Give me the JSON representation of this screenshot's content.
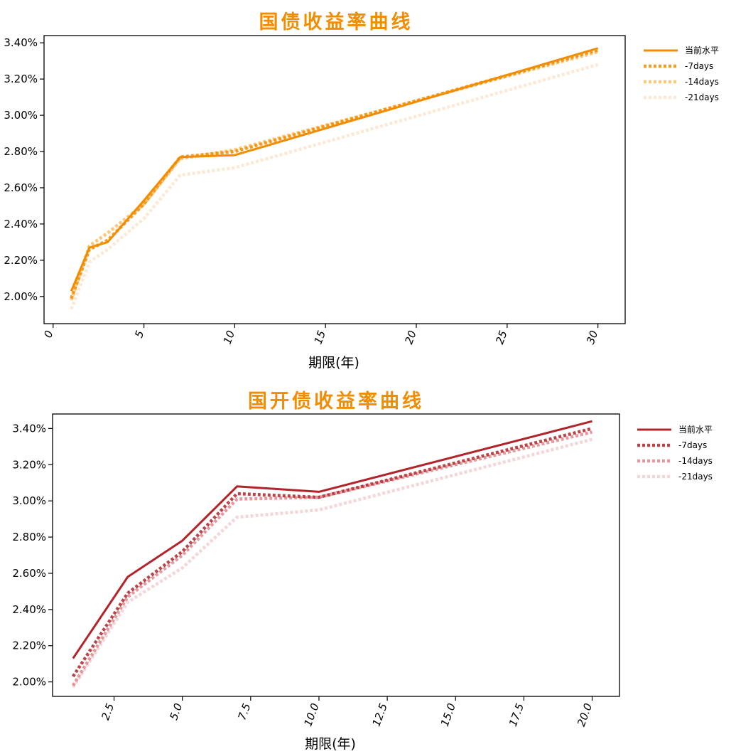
{
  "chart_data": [
    {
      "type": "line",
      "title": "国债收益率曲线",
      "title_color": "#f28c00",
      "xlabel": "期限(年)",
      "ylabel": "",
      "xlim": [
        -0.5,
        31.5
      ],
      "ylim": [
        1.85,
        3.44
      ],
      "xticks": [
        0,
        5,
        10,
        15,
        20,
        25,
        30
      ],
      "xtick_labels": [
        "0",
        "5",
        "10",
        "15",
        "20",
        "25",
        "30"
      ],
      "yticks": [
        2.0,
        2.2,
        2.4,
        2.6,
        2.8,
        3.0,
        3.2,
        3.4
      ],
      "ytick_labels": [
        "2.00%",
        "2.20%",
        "2.40%",
        "2.60%",
        "2.80%",
        "3.00%",
        "3.20%",
        "3.40%"
      ],
      "grid": false,
      "legend_position": "outside-right",
      "x": [
        1,
        2,
        3,
        5,
        7,
        10,
        30
      ],
      "series": [
        {
          "name": "当前水平",
          "color": "#f28c00",
          "opacity": 1.0,
          "style": "solid",
          "values": [
            2.03,
            2.27,
            2.3,
            2.53,
            2.77,
            2.78,
            3.37
          ]
        },
        {
          "name": "-7days",
          "color": "#f28c00",
          "opacity": 0.85,
          "style": "dotted",
          "values": [
            1.99,
            2.26,
            2.31,
            2.51,
            2.77,
            2.8,
            3.36
          ]
        },
        {
          "name": "-14days",
          "color": "#f6b042",
          "opacity": 0.7,
          "style": "dotted",
          "values": [
            1.98,
            2.28,
            2.35,
            2.51,
            2.76,
            2.81,
            3.35
          ]
        },
        {
          "name": "-21days",
          "color": "#fbd9b6",
          "opacity": 0.6,
          "style": "dotted",
          "values": [
            1.93,
            2.19,
            2.26,
            2.43,
            2.67,
            2.71,
            3.28
          ]
        }
      ]
    },
    {
      "type": "line",
      "title": "国开债收益率曲线",
      "title_color": "#f28c00",
      "xlabel": "期限(年)",
      "ylabel": "",
      "xlim": [
        0.25,
        21.0
      ],
      "ylim": [
        1.92,
        3.48
      ],
      "xticks": [
        2.5,
        5.0,
        7.5,
        10.0,
        12.5,
        15.0,
        17.5,
        20.0
      ],
      "xtick_labels": [
        "2.5",
        "5.0",
        "7.5",
        "10.0",
        "12.5",
        "15.0",
        "17.5",
        "20.0"
      ],
      "yticks": [
        2.0,
        2.2,
        2.4,
        2.6,
        2.8,
        3.0,
        3.2,
        3.4
      ],
      "ytick_labels": [
        "2.00%",
        "2.20%",
        "2.40%",
        "2.60%",
        "2.80%",
        "3.00%",
        "3.20%",
        "3.40%"
      ],
      "grid": false,
      "legend_position": "outside-right",
      "x": [
        1,
        3,
        5,
        7,
        10,
        20
      ],
      "series": [
        {
          "name": "当前水平",
          "color": "#b0242a",
          "opacity": 1.0,
          "style": "solid",
          "values": [
            2.13,
            2.58,
            2.78,
            3.08,
            3.05,
            3.44
          ]
        },
        {
          "name": "-7days",
          "color": "#b0242a",
          "opacity": 0.85,
          "style": "dotted",
          "values": [
            2.03,
            2.49,
            2.72,
            3.04,
            3.02,
            3.4
          ]
        },
        {
          "name": "-14days",
          "color": "#d9777d",
          "opacity": 0.75,
          "style": "dotted",
          "values": [
            1.98,
            2.47,
            2.7,
            3.01,
            3.02,
            3.38
          ]
        },
        {
          "name": "-21days",
          "color": "#f1c5c8",
          "opacity": 0.7,
          "style": "dotted",
          "values": [
            1.97,
            2.44,
            2.63,
            2.91,
            2.95,
            3.34
          ]
        }
      ]
    }
  ]
}
